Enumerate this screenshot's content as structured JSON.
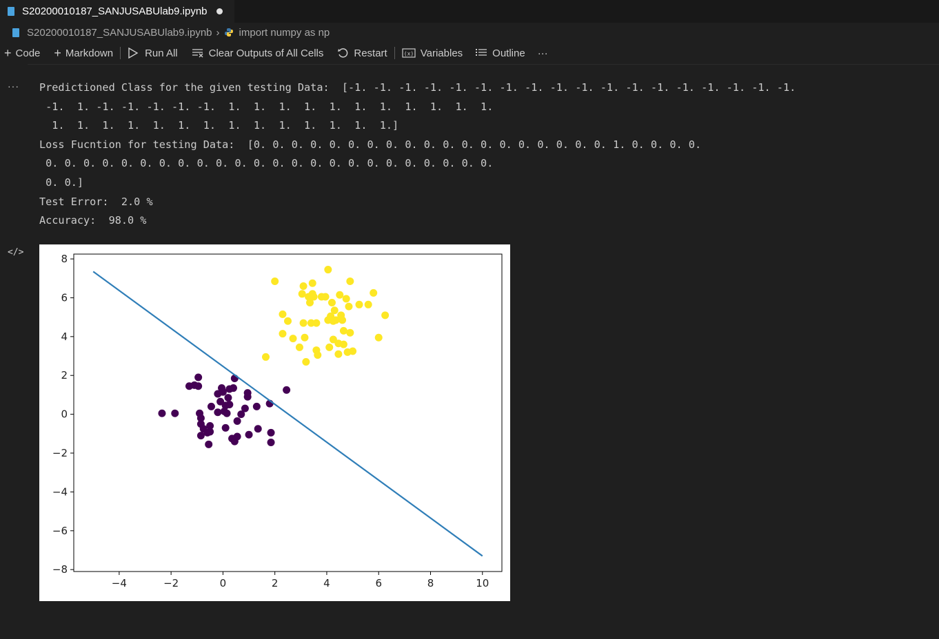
{
  "tab": {
    "title": "S20200010187_SANJUSABUlab9.ipynb"
  },
  "breadcrumb": {
    "file": "S20200010187_SANJUSABUlab9.ipynb",
    "cell": "import numpy as np"
  },
  "toolbar": {
    "code": "Code",
    "markdown": "Markdown",
    "run_all": "Run All",
    "clear_outputs": "Clear Outputs of All Cells",
    "restart": "Restart",
    "variables": "Variables",
    "outline": "Outline",
    "more": "···"
  },
  "output_lines": [
    "Predictioned Class for the given testing Data:  [-1. -1. -1. -1. -1. -1. -1. -1. -1. -1. -1. -1. -1. -1. -1. -1. -1. -1.",
    " -1.  1. -1. -1. -1. -1. -1.  1.  1.  1.  1.  1.  1.  1.  1.  1.  1.  1.",
    "  1.  1.  1.  1.  1.  1.  1.  1.  1.  1.  1.  1.  1.  1.]",
    "Loss Fucntion for testing Data:  [0. 0. 0. 0. 0. 0. 0. 0. 0. 0. 0. 0. 0. 0. 0. 0. 0. 0. 0. 1. 0. 0. 0. 0.",
    " 0. 0. 0. 0. 0. 0. 0. 0. 0. 0. 0. 0. 0. 0. 0. 0. 0. 0. 0. 0. 0. 0. 0. 0.",
    " 0. 0.]",
    "Test Error:  2.0 %",
    "Accuracy:  98.0 %"
  ],
  "chart_data": {
    "type": "scatter",
    "xlim": [
      -5.75,
      10.75
    ],
    "ylim": [
      -8.1,
      8.25
    ],
    "xticks": [
      -4,
      -2,
      0,
      2,
      4,
      6,
      8,
      10
    ],
    "yticks": [
      -8,
      -6,
      -4,
      -2,
      0,
      2,
      4,
      6,
      8
    ],
    "xtick_labels": [
      "−4",
      "−2",
      "0",
      "2",
      "4",
      "6",
      "8",
      "10"
    ],
    "ytick_labels": [
      "−8",
      "−6",
      "−4",
      "−2",
      "0",
      "2",
      "4",
      "6",
      "8"
    ],
    "line": {
      "x": [
        -5,
        10
      ],
      "y": [
        7.35,
        -7.3
      ],
      "color": "#2f7eb8"
    },
    "series": [
      {
        "color": "#440154",
        "points": [
          [
            -2.35,
            0.05
          ],
          [
            -1.85,
            0.05
          ],
          [
            -1.3,
            1.45
          ],
          [
            -1.1,
            1.5
          ],
          [
            -0.95,
            1.9
          ],
          [
            -0.95,
            1.45
          ],
          [
            -0.9,
            0.05
          ],
          [
            -0.85,
            -0.2
          ],
          [
            -0.85,
            -0.5
          ],
          [
            -0.85,
            -1.1
          ],
          [
            -0.75,
            -0.75
          ],
          [
            -0.6,
            -0.95
          ],
          [
            -0.55,
            -1.55
          ],
          [
            -0.5,
            -0.6
          ],
          [
            -0.5,
            -0.9
          ],
          [
            -0.45,
            0.4
          ],
          [
            -0.2,
            0.1
          ],
          [
            -0.2,
            1.05
          ],
          [
            -0.1,
            0.65
          ],
          [
            -0.05,
            1.35
          ],
          [
            0,
            1.15
          ],
          [
            0.05,
            0.15
          ],
          [
            0.1,
            0.45
          ],
          [
            0.1,
            -0.7
          ],
          [
            0.15,
            0.05
          ],
          [
            0.2,
            0.85
          ],
          [
            0.25,
            1.3
          ],
          [
            0.25,
            0.5
          ],
          [
            0.35,
            -1.25
          ],
          [
            0.4,
            1.35
          ],
          [
            0.45,
            1.85
          ],
          [
            0.45,
            -1.4
          ],
          [
            0.55,
            -0.35
          ],
          [
            0.55,
            -1.15
          ],
          [
            0.7,
            0
          ],
          [
            0.85,
            0.3
          ],
          [
            0.95,
            1.1
          ],
          [
            0.95,
            0.9
          ],
          [
            1.0,
            -1.05
          ],
          [
            1.3,
            0.4
          ],
          [
            1.35,
            -0.75
          ],
          [
            1.8,
            0.55
          ],
          [
            1.85,
            -0.95
          ],
          [
            1.85,
            -1.45
          ],
          [
            2.45,
            1.25
          ]
        ],
        "label": ""
      },
      {
        "color": "#fde725",
        "points": [
          [
            1.65,
            2.95
          ],
          [
            2.0,
            6.85
          ],
          [
            2.3,
            5.15
          ],
          [
            2.3,
            4.15
          ],
          [
            2.5,
            4.8
          ],
          [
            2.7,
            3.9
          ],
          [
            2.95,
            3.45
          ],
          [
            3.05,
            6.2
          ],
          [
            3.1,
            4.7
          ],
          [
            3.1,
            6.6
          ],
          [
            3.15,
            3.95
          ],
          [
            3.2,
            2.7
          ],
          [
            3.3,
            6.05
          ],
          [
            3.35,
            5.75
          ],
          [
            3.4,
            4.7
          ],
          [
            3.45,
            6.75
          ],
          [
            3.45,
            6.2
          ],
          [
            3.5,
            6.05
          ],
          [
            3.6,
            4.7
          ],
          [
            3.6,
            3.3
          ],
          [
            3.65,
            3.05
          ],
          [
            3.8,
            6.05
          ],
          [
            3.95,
            6.05
          ],
          [
            4.05,
            7.45
          ],
          [
            4.05,
            4.85
          ],
          [
            4.1,
            3.45
          ],
          [
            4.15,
            5.05
          ],
          [
            4.2,
            5.75
          ],
          [
            4.25,
            4.8
          ],
          [
            4.25,
            3.85
          ],
          [
            4.3,
            5.35
          ],
          [
            4.35,
            4.85
          ],
          [
            4.45,
            3.65
          ],
          [
            4.45,
            3.1
          ],
          [
            4.5,
            6.15
          ],
          [
            4.55,
            5.1
          ],
          [
            4.6,
            4.85
          ],
          [
            4.65,
            4.3
          ],
          [
            4.65,
            3.6
          ],
          [
            4.75,
            5.95
          ],
          [
            4.8,
            3.2
          ],
          [
            4.85,
            5.55
          ],
          [
            4.9,
            6.85
          ],
          [
            4.9,
            4.2
          ],
          [
            5.0,
            3.25
          ],
          [
            5.25,
            5.65
          ],
          [
            5.6,
            5.65
          ],
          [
            5.8,
            6.25
          ],
          [
            6.0,
            3.95
          ],
          [
            6.25,
            5.1
          ]
        ],
        "label": ""
      }
    ]
  }
}
